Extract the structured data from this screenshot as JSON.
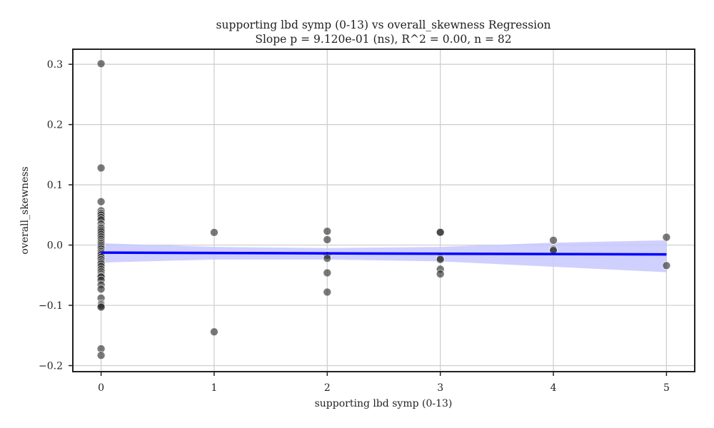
{
  "chart_data": {
    "type": "scatter",
    "title": "supporting lbd symp (0-13) vs overall_skewness Regression",
    "subtitle": "Slope p = 9.120e-01 (ns), R^2 = 0.00, n = 82",
    "xlabel": "supporting lbd symp (0-13)",
    "ylabel": "overall_skewness",
    "xlim": [
      -0.25,
      5.25
    ],
    "ylim": [
      -0.21,
      0.325
    ],
    "xticks": [
      0,
      1,
      2,
      3,
      4,
      5
    ],
    "yticks": [
      -0.2,
      -0.1,
      0.0,
      0.1,
      0.2,
      0.3
    ],
    "ytick_labels": [
      "−0.2",
      "−0.1",
      "0.0",
      "0.1",
      "0.2",
      "0.3"
    ],
    "grid": true,
    "points": [
      {
        "x": 0,
        "y": 0.301
      },
      {
        "x": 0,
        "y": 0.128
      },
      {
        "x": 0,
        "y": 0.072
      },
      {
        "x": 0,
        "y": 0.057
      },
      {
        "x": 0,
        "y": 0.053
      },
      {
        "x": 0,
        "y": 0.05
      },
      {
        "x": 0,
        "y": 0.046
      },
      {
        "x": 0,
        "y": 0.042
      },
      {
        "x": 0,
        "y": 0.035
      },
      {
        "x": 0,
        "y": 0.03
      },
      {
        "x": 0,
        "y": 0.028
      },
      {
        "x": 0,
        "y": 0.025
      },
      {
        "x": 0,
        "y": 0.022
      },
      {
        "x": 0,
        "y": 0.018
      },
      {
        "x": 0,
        "y": 0.014
      },
      {
        "x": 0,
        "y": 0.01
      },
      {
        "x": 0,
        "y": 0.006
      },
      {
        "x": 0,
        "y": 0.003
      },
      {
        "x": 0,
        "y": 0.0
      },
      {
        "x": 0,
        "y": -0.003
      },
      {
        "x": 0,
        "y": -0.006
      },
      {
        "x": 0,
        "y": -0.01
      },
      {
        "x": 0,
        "y": -0.013
      },
      {
        "x": 0,
        "y": -0.016
      },
      {
        "x": 0,
        "y": -0.02
      },
      {
        "x": 0,
        "y": -0.024
      },
      {
        "x": 0,
        "y": -0.028
      },
      {
        "x": 0,
        "y": -0.031
      },
      {
        "x": 0,
        "y": -0.035
      },
      {
        "x": 0,
        "y": -0.04
      },
      {
        "x": 0,
        "y": -0.044
      },
      {
        "x": 0,
        "y": -0.048
      },
      {
        "x": 0,
        "y": -0.051
      },
      {
        "x": 0,
        "y": -0.053
      },
      {
        "x": 0,
        "y": -0.058
      },
      {
        "x": 0,
        "y": -0.066
      },
      {
        "x": 0,
        "y": -0.073
      },
      {
        "x": 0,
        "y": -0.088
      },
      {
        "x": 0,
        "y": -0.097
      },
      {
        "x": 0,
        "y": -0.099
      },
      {
        "x": 0,
        "y": -0.101
      },
      {
        "x": 0,
        "y": -0.103
      },
      {
        "x": 0,
        "y": -0.172
      },
      {
        "x": 0,
        "y": -0.183
      },
      {
        "x": 1,
        "y": 0.021
      },
      {
        "x": 1,
        "y": -0.144
      },
      {
        "x": 2,
        "y": 0.023
      },
      {
        "x": 2,
        "y": 0.009
      },
      {
        "x": 2,
        "y": -0.017
      },
      {
        "x": 2,
        "y": -0.022
      },
      {
        "x": 2,
        "y": -0.046
      },
      {
        "x": 2,
        "y": -0.078
      },
      {
        "x": 3,
        "y": 0.022
      },
      {
        "x": 3,
        "y": 0.021
      },
      {
        "x": 3,
        "y": -0.022
      },
      {
        "x": 3,
        "y": -0.024
      },
      {
        "x": 3,
        "y": -0.04
      },
      {
        "x": 3,
        "y": -0.048
      },
      {
        "x": 4,
        "y": 0.008
      },
      {
        "x": 4,
        "y": -0.007
      },
      {
        "x": 4,
        "y": -0.009
      },
      {
        "x": 5,
        "y": 0.013
      },
      {
        "x": 5,
        "y": -0.034
      }
    ],
    "regression": {
      "x": [
        0,
        5
      ],
      "y": [
        -0.0125,
        -0.0155
      ]
    },
    "confidence_band": {
      "x": [
        0,
        1,
        2,
        3,
        4,
        5
      ],
      "lower": [
        -0.029,
        -0.024,
        -0.024,
        -0.027,
        -0.036,
        -0.045
      ],
      "upper": [
        0.003,
        -0.003,
        -0.005,
        -0.003,
        0.004,
        0.008
      ]
    },
    "colors": {
      "points": "#333333",
      "regression_line": "#0000ff",
      "confidence_band": "#c8c8ff",
      "grid": "#cccccc",
      "axes": "#222222"
    }
  }
}
